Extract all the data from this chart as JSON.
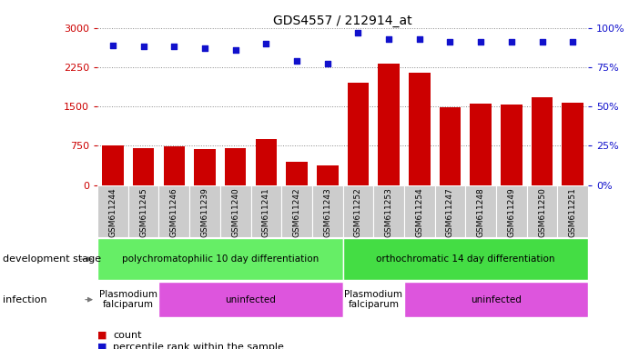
{
  "title": "GDS4557 / 212914_at",
  "samples": [
    "GSM611244",
    "GSM611245",
    "GSM611246",
    "GSM611239",
    "GSM611240",
    "GSM611241",
    "GSM611242",
    "GSM611243",
    "GSM611252",
    "GSM611253",
    "GSM611254",
    "GSM611247",
    "GSM611248",
    "GSM611249",
    "GSM611250",
    "GSM611251"
  ],
  "counts": [
    750,
    700,
    730,
    680,
    710,
    880,
    450,
    380,
    1950,
    2320,
    2150,
    1490,
    1550,
    1530,
    1680,
    1570
  ],
  "percentiles": [
    89,
    88,
    88,
    87,
    86,
    90,
    79,
    77,
    97,
    93,
    93,
    91,
    91,
    91,
    91,
    91
  ],
  "ylim_left": [
    0,
    3000
  ],
  "ylim_right": [
    0,
    100
  ],
  "yticks_left": [
    0,
    750,
    1500,
    2250,
    3000
  ],
  "yticks_right": [
    0,
    25,
    50,
    75,
    100
  ],
  "bar_color": "#cc0000",
  "dot_color": "#1111cc",
  "development_stage_groups": [
    {
      "label": "polychromatophilic 10 day differentiation",
      "start": 0,
      "end": 8,
      "color": "#66ee66"
    },
    {
      "label": "orthochromatic 14 day differentiation",
      "start": 8,
      "end": 16,
      "color": "#44dd44"
    }
  ],
  "infection_groups": [
    {
      "label": "Plasmodium\nfalciparum",
      "start": 0,
      "end": 2,
      "color": "#ffffff"
    },
    {
      "label": "uninfected",
      "start": 2,
      "end": 8,
      "color": "#dd55dd"
    },
    {
      "label": "Plasmodium\nfalciparum",
      "start": 8,
      "end": 10,
      "color": "#ffffff"
    },
    {
      "label": "uninfected",
      "start": 10,
      "end": 16,
      "color": "#dd55dd"
    }
  ],
  "legend_items": [
    {
      "color": "#cc0000",
      "label": "count"
    },
    {
      "color": "#1111cc",
      "label": "percentile rank within the sample"
    }
  ],
  "left_label_color": "#cc0000",
  "right_label_color": "#1111cc",
  "grid_color": "#888888",
  "label_bg_color": "#cccccc",
  "left_annot_labels": [
    {
      "text": "development stage",
      "row": "dev"
    },
    {
      "text": "infection",
      "row": "inf"
    }
  ]
}
